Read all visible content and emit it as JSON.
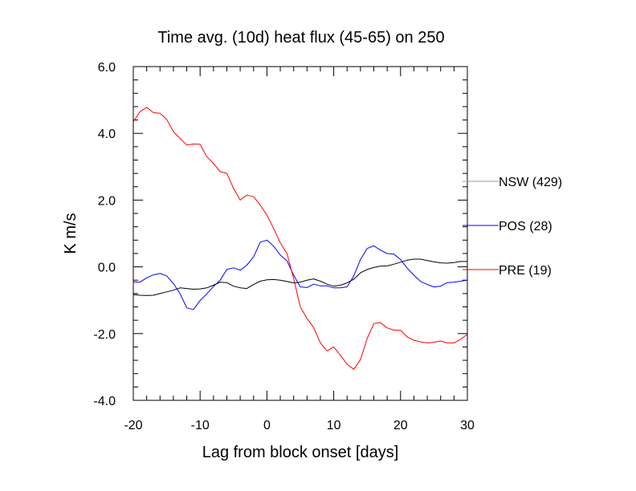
{
  "chart_data": {
    "type": "line",
    "title": "Time avg. (10d) heat flux (45-65) on 250",
    "xlabel": "Lag from block onset [days]",
    "ylabel": "K m/s",
    "xlim": [
      -20,
      30
    ],
    "ylim": [
      -4,
      6
    ],
    "xticks": [
      -20,
      -10,
      0,
      10,
      20,
      30
    ],
    "xtick_labels": [
      "-20",
      "-10",
      "0",
      "10",
      "20",
      "30"
    ],
    "yticks": [
      -4,
      -2,
      0,
      2,
      4,
      6
    ],
    "ytick_labels": [
      "-4.0",
      "-2.0",
      "0.0",
      "2.0",
      "4.0",
      "6.0"
    ],
    "grid": false,
    "legend_position": "right",
    "series": [
      {
        "name": "NSW (429)",
        "legend_label": "NSW (429)",
        "color": "#000000",
        "legend_color": "#9a9a9a",
        "x": [
          -20,
          -19,
          -18,
          -17,
          -16,
          -15,
          -14,
          -13,
          -12,
          -11,
          -10,
          -9,
          -8,
          -7,
          -6,
          -5,
          -4,
          -3,
          -2,
          -1,
          0,
          1,
          2,
          3,
          4,
          5,
          6,
          7,
          8,
          9,
          10,
          11,
          12,
          13,
          14,
          15,
          16,
          17,
          18,
          19,
          20,
          21,
          22,
          23,
          24,
          25,
          26,
          27,
          28,
          29,
          30
        ],
        "y": [
          -0.83,
          -0.85,
          -0.86,
          -0.85,
          -0.8,
          -0.75,
          -0.7,
          -0.63,
          -0.65,
          -0.67,
          -0.66,
          -0.63,
          -0.55,
          -0.46,
          -0.47,
          -0.58,
          -0.63,
          -0.65,
          -0.53,
          -0.43,
          -0.39,
          -0.38,
          -0.4,
          -0.44,
          -0.48,
          -0.46,
          -0.4,
          -0.36,
          -0.43,
          -0.52,
          -0.58,
          -0.55,
          -0.48,
          -0.37,
          -0.18,
          -0.08,
          -0.02,
          0.02,
          0.03,
          0.08,
          0.14,
          0.2,
          0.23,
          0.23,
          0.19,
          0.15,
          0.12,
          0.11,
          0.13,
          0.16,
          0.16
        ]
      },
      {
        "name": "POS (28)",
        "legend_label": "POS (28)",
        "color": "#0000ff",
        "legend_color": "#0000ff",
        "x": [
          -20,
          -19,
          -18,
          -17,
          -16,
          -15,
          -14,
          -13,
          -12,
          -11,
          -10,
          -9,
          -8,
          -7,
          -6,
          -5,
          -4,
          -3,
          -2,
          -1,
          0,
          1,
          2,
          3,
          4,
          5,
          6,
          7,
          8,
          9,
          10,
          11,
          12,
          13,
          14,
          15,
          16,
          17,
          18,
          19,
          20,
          21,
          22,
          23,
          24,
          25,
          26,
          27,
          28,
          29,
          30
        ],
        "y": [
          -0.45,
          -0.46,
          -0.33,
          -0.24,
          -0.2,
          -0.27,
          -0.5,
          -0.8,
          -1.23,
          -1.28,
          -1.01,
          -0.81,
          -0.59,
          -0.4,
          -0.08,
          -0.03,
          -0.1,
          0.05,
          0.3,
          0.74,
          0.8,
          0.62,
          0.35,
          0.18,
          -0.25,
          -0.6,
          -0.62,
          -0.52,
          -0.57,
          -0.57,
          -0.63,
          -0.63,
          -0.6,
          -0.27,
          0.22,
          0.55,
          0.63,
          0.5,
          0.4,
          0.38,
          0.22,
          -0.04,
          -0.25,
          -0.44,
          -0.53,
          -0.6,
          -0.58,
          -0.47,
          -0.46,
          -0.43,
          -0.4
        ]
      },
      {
        "name": "PRE (19)",
        "legend_label": "PRE (19)",
        "color": "#ff0000",
        "legend_color": "#ff0000",
        "x": [
          -20,
          -19,
          -18,
          -17,
          -16,
          -15,
          -14,
          -13,
          -12,
          -11,
          -10,
          -9,
          -8,
          -7,
          -6,
          -5,
          -4,
          -3,
          -2,
          -1,
          0,
          1,
          2,
          3,
          4,
          5,
          6,
          7,
          8,
          9,
          10,
          11,
          12,
          13,
          14,
          15,
          16,
          17,
          18,
          19,
          20,
          21,
          22,
          23,
          24,
          25,
          26,
          27,
          28,
          29,
          30
        ],
        "y": [
          4.35,
          4.65,
          4.78,
          4.62,
          4.6,
          4.42,
          4.05,
          3.85,
          3.65,
          3.68,
          3.67,
          3.3,
          3.1,
          2.85,
          2.8,
          2.35,
          2.0,
          2.15,
          2.1,
          1.85,
          1.55,
          1.15,
          0.72,
          0.4,
          -0.35,
          -1.2,
          -1.55,
          -1.82,
          -2.28,
          -2.52,
          -2.4,
          -2.65,
          -2.92,
          -3.07,
          -2.78,
          -2.15,
          -1.7,
          -1.67,
          -1.83,
          -1.9,
          -1.9,
          -2.1,
          -2.2,
          -2.25,
          -2.28,
          -2.26,
          -2.22,
          -2.28,
          -2.28,
          -2.17,
          -2.02
        ]
      }
    ]
  }
}
